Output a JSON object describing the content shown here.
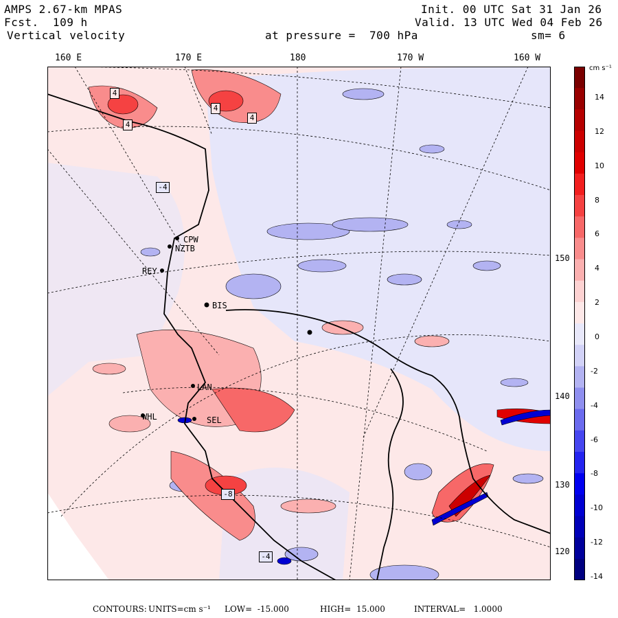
{
  "header": {
    "model": "AMPS 2.67-km MPAS",
    "fcst": "Fcst.  109 h",
    "field": "Vertical velocity",
    "init": "Init. 00 UTC Sat 31 Jan 26",
    "valid": "Valid. 13 UTC Wed 04 Feb 26",
    "pressure": "at pressure =  700 hPa",
    "smooth": "sm= 6"
  },
  "longitudes": [
    "160 E",
    "170 E",
    "180",
    "170 W",
    "160 W"
  ],
  "latitudes": [
    "150 W",
    "140 W",
    "130 W",
    "120 W"
  ],
  "stations": [
    "CPW",
    "NZTB",
    "REY",
    "BIS",
    "LAN",
    "WHL",
    "SEL"
  ],
  "highs_lows": [
    "4",
    "4",
    "4",
    "4",
    "-4",
    "-8",
    "-4"
  ],
  "colorbar": {
    "unit": "cm s⁻¹",
    "ticks": [
      "14",
      "12",
      "10",
      "8",
      "6",
      "4",
      "2",
      "0",
      "-2",
      "-4",
      "-6",
      "-8",
      "-10",
      "-12",
      "-14"
    ],
    "colors": [
      "#7a0000",
      "#990000",
      "#b50000",
      "#cc0000",
      "#e00000",
      "#f21f1f",
      "#f54242",
      "#f76868",
      "#f98c8c",
      "#fbb0b0",
      "#fdd2d2",
      "#fde8e8",
      "#e8e8fa",
      "#d2d2f7",
      "#b3b3f2",
      "#8f8fef",
      "#6b6bee",
      "#4646f0",
      "#2424f0",
      "#0000f0",
      "#0000d2",
      "#0000b8",
      "#00009c",
      "#000080"
    ]
  },
  "footer": {
    "label": "CONTOURS:",
    "units": "UNITS=cm s⁻¹",
    "low": "LOW=  -15.000",
    "high": "HIGH=  15.000",
    "interval": "INTERVAL=   1.0000"
  }
}
